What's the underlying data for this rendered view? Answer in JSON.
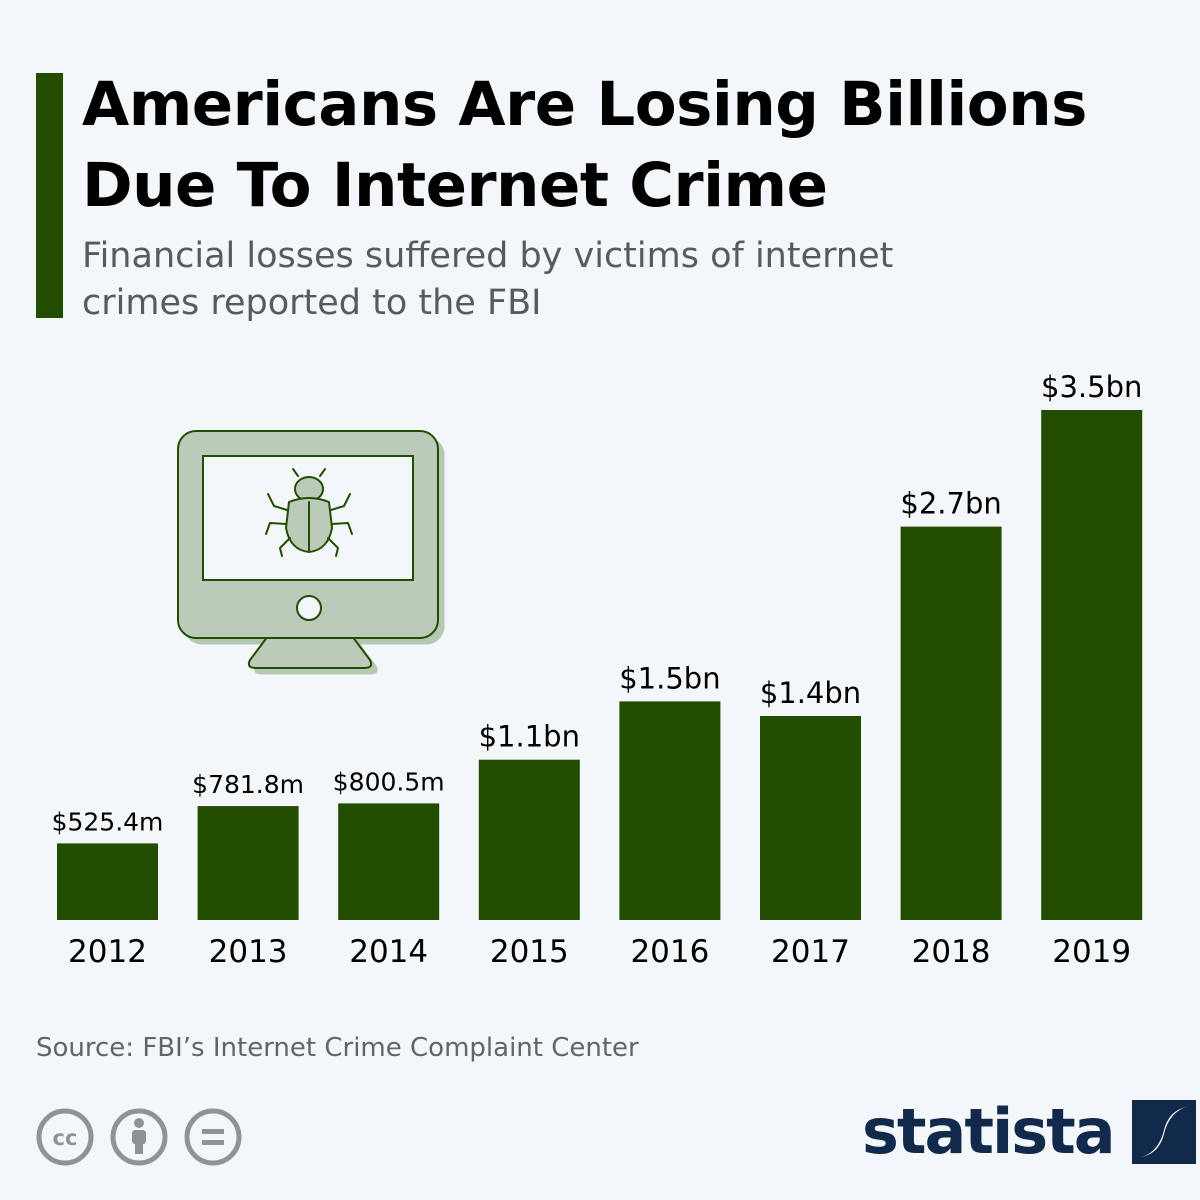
{
  "title": "Americans Are Losing Billions Due To Internet Crime",
  "subtitle": "Financial losses suffered by victims of internet crimes reported to the FBI",
  "source": "Source: FBI’s Internet Crime Complaint Center",
  "brand": {
    "name": "statista",
    "color": "#11294a"
  },
  "icons": {
    "illustration": "computer-bug-icon",
    "license": [
      "cc-icon",
      "attribution-icon",
      "no-derivatives-icon"
    ]
  },
  "colors": {
    "bar": "#224d00",
    "accent": "#224d00",
    "background": "#f3f7fa"
  },
  "chart_data": {
    "type": "bar",
    "categories": [
      "2012",
      "2013",
      "2014",
      "2015",
      "2016",
      "2017",
      "2018",
      "2019"
    ],
    "values": [
      525.4,
      781.8,
      800.5,
      1100,
      1500,
      1400,
      2700,
      3500
    ],
    "unit": "million USD",
    "data_labels": [
      "$525.4m",
      "$781.8m",
      "$800.5m",
      "$1.1bn",
      "$1.5bn",
      "$1.4bn",
      "$2.7bn",
      "$3.5bn"
    ],
    "ylim": [
      0,
      3500
    ],
    "grid": false,
    "legend": "none"
  }
}
